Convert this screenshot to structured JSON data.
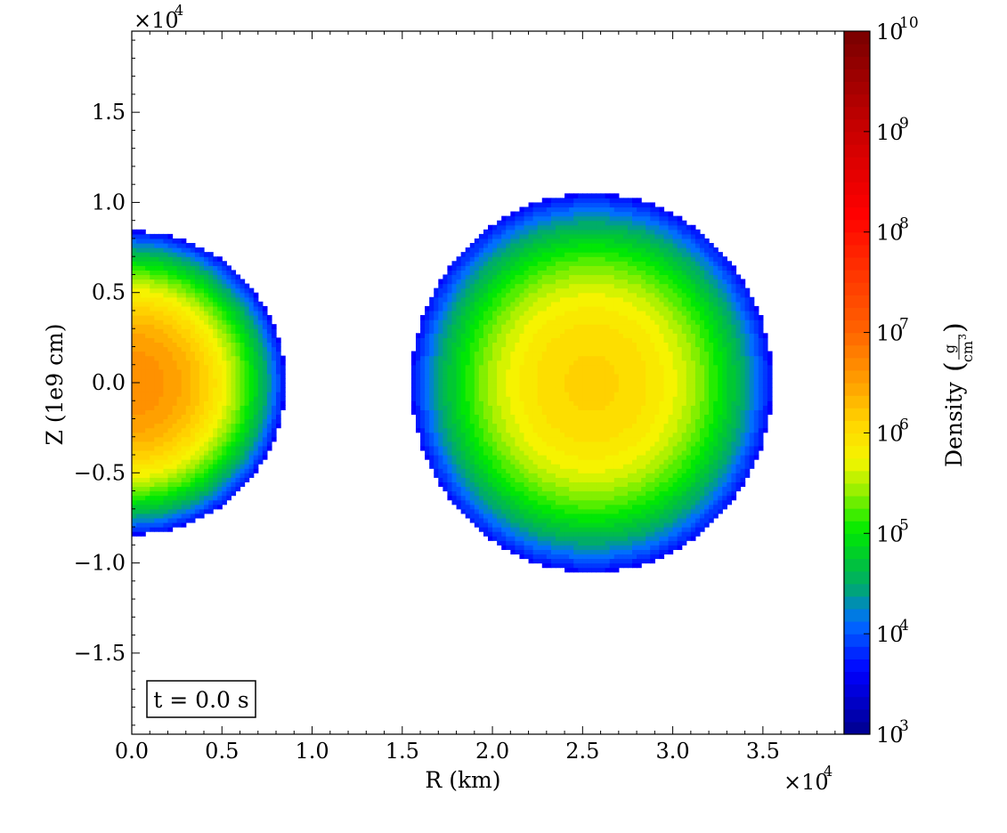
{
  "chart_data": {
    "type": "heatmap",
    "xlabel": "R (km)",
    "ylabel": "Z (1e9 cm)",
    "x_multiplier": "×10",
    "x_multiplier_exp": "4",
    "y_multiplier": "×10",
    "y_multiplier_exp": "4",
    "xlim": [
      0,
      39500
    ],
    "ylim": [
      -19500,
      19500
    ],
    "x_ticks": [
      0,
      5000,
      10000,
      15000,
      20000,
      25000,
      30000,
      35000
    ],
    "x_tick_labels": [
      "0.0",
      "0.5",
      "1.0",
      "1.5",
      "2.0",
      "2.5",
      "3.0",
      "3.5"
    ],
    "y_ticks": [
      -15000,
      -10000,
      -5000,
      0,
      5000,
      10000,
      15000
    ],
    "y_tick_labels": [
      "−1.5",
      "−1.0",
      "−0.5",
      "0.0",
      "0.5",
      "1.0",
      "1.5"
    ],
    "annotation": "t = 0.0 s",
    "colorbar": {
      "scale": "log",
      "range": [
        1000,
        10000000000
      ],
      "label": "Density",
      "unit_numerator": "g",
      "unit_denominator": "cm",
      "unit_denominator_exp": "3",
      "tick_base": "10",
      "ticks": [
        "3",
        "4",
        "5",
        "6",
        "7",
        "8",
        "9",
        "10"
      ]
    },
    "objects": [
      {
        "name": "left star",
        "center_r": 0,
        "center_z": 0,
        "radius_r": 8500,
        "radius_z": 8400,
        "central_density_log10": 6.7,
        "surface_density_log10": 3.7
      },
      {
        "name": "right star",
        "center_r": 25500,
        "center_z": 0,
        "radius_r": 10000,
        "radius_z": 10500,
        "central_density_log10": 6.15,
        "surface_density_log10": 3.7
      }
    ]
  }
}
